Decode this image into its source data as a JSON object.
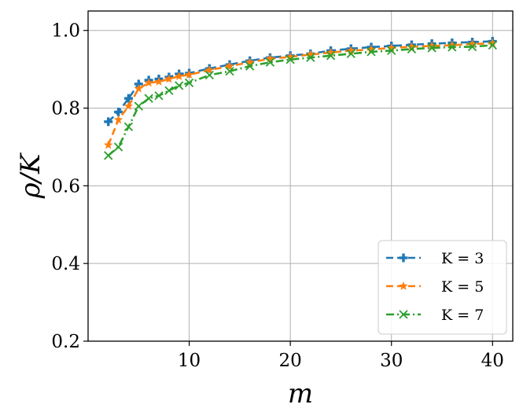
{
  "chart_data": {
    "type": "line",
    "title": "",
    "xlabel": "m",
    "ylabel": "ρ/K",
    "xlim": [
      0,
      42
    ],
    "ylim": [
      0.2,
      1.05
    ],
    "xticks": [
      10,
      20,
      30,
      40
    ],
    "yticks": [
      0.2,
      0.4,
      0.6,
      0.8,
      1.0
    ],
    "xtick_labels": [
      "10",
      "20",
      "30",
      "40"
    ],
    "ytick_labels": [
      "0.2",
      "0.4",
      "0.6",
      "0.8",
      "1.0"
    ],
    "grid": true,
    "legend_position": "bottom-right",
    "series": [
      {
        "name": "K = 3",
        "color": "#1f77b4",
        "marker": "plus",
        "line_style": "dashed",
        "x": [
          2,
          3,
          4,
          5,
          6,
          7,
          8,
          9,
          10,
          12,
          14,
          16,
          18,
          20,
          22,
          24,
          26,
          28,
          30,
          32,
          34,
          36,
          38,
          40
        ],
        "y": [
          0.765,
          0.79,
          0.825,
          0.862,
          0.872,
          0.875,
          0.88,
          0.888,
          0.89,
          0.902,
          0.912,
          0.922,
          0.93,
          0.935,
          0.94,
          0.948,
          0.953,
          0.957,
          0.96,
          0.963,
          0.966,
          0.968,
          0.97,
          0.972
        ]
      },
      {
        "name": "K = 5",
        "color": "#ff7f0e",
        "marker": "star",
        "line_style": "dashed",
        "x": [
          2,
          3,
          4,
          5,
          6,
          7,
          8,
          9,
          10,
          12,
          14,
          16,
          18,
          20,
          22,
          24,
          26,
          28,
          30,
          32,
          34,
          36,
          38,
          40
        ],
        "y": [
          0.705,
          0.77,
          0.805,
          0.85,
          0.865,
          0.868,
          0.875,
          0.882,
          0.886,
          0.898,
          0.908,
          0.918,
          0.927,
          0.932,
          0.938,
          0.943,
          0.948,
          0.951,
          0.955,
          0.958,
          0.96,
          0.962,
          0.965,
          0.967
        ]
      },
      {
        "name": "K = 7",
        "color": "#2ca02c",
        "marker": "x",
        "line_style": "dashdot",
        "x": [
          2,
          3,
          4,
          5,
          6,
          7,
          8,
          9,
          10,
          12,
          14,
          16,
          18,
          20,
          22,
          24,
          26,
          28,
          30,
          32,
          34,
          36,
          38,
          40
        ],
        "y": [
          0.678,
          0.7,
          0.752,
          0.805,
          0.825,
          0.832,
          0.845,
          0.858,
          0.865,
          0.885,
          0.895,
          0.908,
          0.918,
          0.925,
          0.93,
          0.935,
          0.94,
          0.945,
          0.948,
          0.952,
          0.955,
          0.957,
          0.958,
          0.962
        ]
      }
    ]
  }
}
